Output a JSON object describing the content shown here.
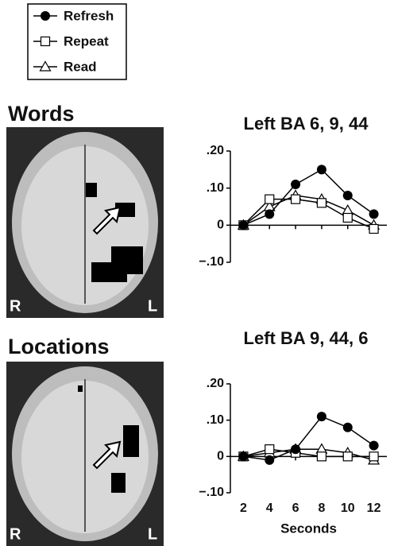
{
  "chart_data": [
    {
      "type": "line",
      "panel_label": "Words",
      "image_labels": [
        "R",
        "L"
      ],
      "title": "Left BA 6, 9, 44",
      "x": [
        2,
        4,
        6,
        8,
        10,
        12
      ],
      "xlim": [
        1,
        13
      ],
      "ylim": [
        -0.1,
        0.2
      ],
      "yticks": [
        {
          "value": 0.2,
          "label": ".20"
        },
        {
          "value": 0.1,
          "label": ".10"
        },
        0,
        {
          "value": -0.1,
          "label": "−.10"
        }
      ],
      "series": [
        {
          "name": "Refresh",
          "color": "#000000",
          "marker": "circle",
          "values": [
            0,
            0.03,
            0.11,
            0.15,
            0.08,
            0.03
          ]
        },
        {
          "name": "Repeat",
          "color": "#000000",
          "marker": "square",
          "values": [
            0,
            0.07,
            0.07,
            0.06,
            0.02,
            -0.01
          ]
        },
        {
          "name": "Read",
          "color": "#000000",
          "marker": "triangle",
          "values": [
            0,
            0.05,
            0.08,
            0.07,
            0.04,
            0
          ]
        }
      ]
    },
    {
      "type": "line",
      "panel_label": "Locations",
      "image_labels": [
        "R",
        "L"
      ],
      "title": "Left BA 9, 44, 6",
      "x": [
        2,
        4,
        6,
        8,
        10,
        12
      ],
      "xlim": [
        1,
        13
      ],
      "xticks": [
        2,
        4,
        6,
        8,
        10,
        12
      ],
      "xlabel": "Seconds",
      "ylim": [
        -0.1,
        0.2
      ],
      "yticks": [
        {
          "value": 0.2,
          "label": ".20"
        },
        {
          "value": 0.1,
          "label": ".10"
        },
        0,
        {
          "value": -0.1,
          "label": "−.10"
        }
      ],
      "series": [
        {
          "name": "Refresh",
          "color": "#000000",
          "marker": "circle",
          "values": [
            0,
            -0.01,
            0.02,
            0.11,
            0.08,
            0.03
          ]
        },
        {
          "name": "Repeat",
          "color": "#000000",
          "marker": "square",
          "values": [
            0,
            0.02,
            0.01,
            0,
            0,
            0
          ]
        },
        {
          "name": "Read",
          "color": "#000000",
          "marker": "triangle",
          "values": [
            0,
            0.01,
            0.02,
            0.02,
            0.01,
            -0.01
          ]
        }
      ]
    }
  ]
}
